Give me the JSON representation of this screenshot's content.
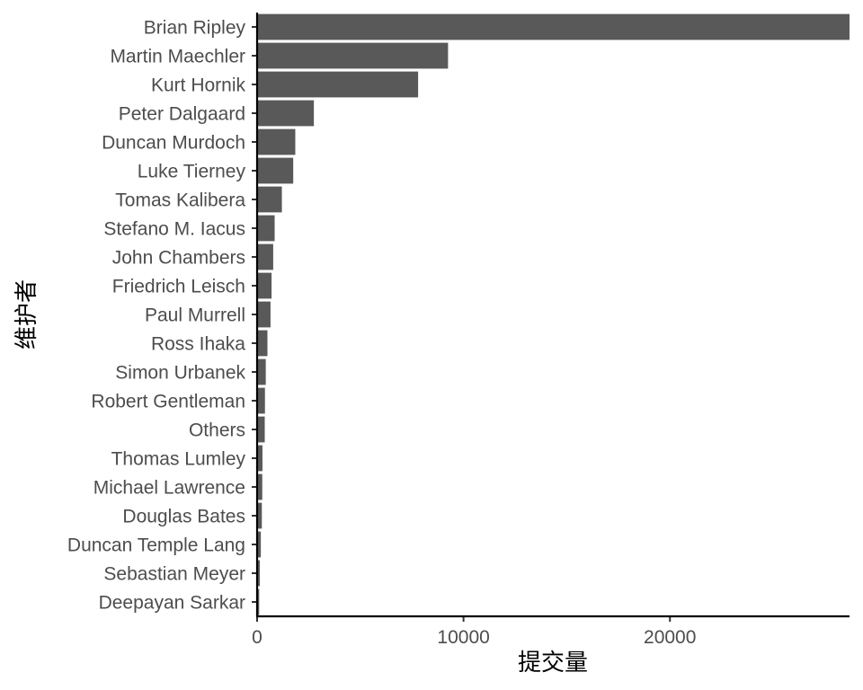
{
  "chart_data": {
    "type": "bar",
    "orientation": "horizontal",
    "xlabel": "提交量",
    "ylabel": "维护者",
    "categories": [
      "Brian Ripley",
      "Martin Maechler",
      "Kurt Hornik",
      "Peter Dalgaard",
      "Duncan Murdoch",
      "Luke Tierney",
      "Tomas Kalibera",
      "Stefano M. Iacus",
      "John Chambers",
      "Friedrich Leisch",
      "Paul Murrell",
      "Ross Ihaka",
      "Simon Urbanek",
      "Robert Gentleman",
      "Others",
      "Thomas Lumley",
      "Michael Lawrence",
      "Douglas Bates",
      "Duncan Temple Lang",
      "Sebastian Meyer",
      "Deepayan Sarkar"
    ],
    "values": [
      28700,
      9250,
      7800,
      2750,
      1850,
      1750,
      1200,
      850,
      780,
      700,
      650,
      500,
      420,
      380,
      370,
      260,
      250,
      230,
      180,
      130,
      100
    ],
    "xlim": [
      0,
      28700
    ],
    "xticks": [
      0,
      10000,
      20000
    ],
    "grid": false,
    "bar_color": "#595959"
  }
}
